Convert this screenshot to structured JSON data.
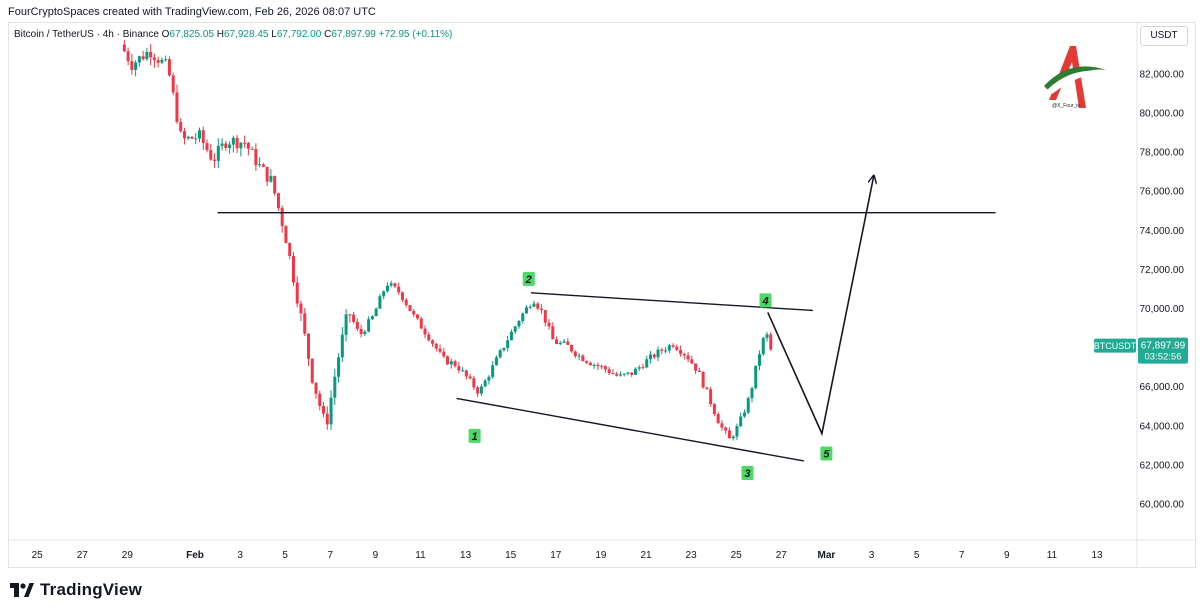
{
  "header": {
    "credit": "FourCryptoSpaces created with TradingView.com, Feb 26, 2026 08:07 UTC"
  },
  "legend": {
    "symbol": "Bitcoin / TetherUS · 4h · Binance",
    "o_label": "O",
    "o_value": "67,825.05",
    "h_label": "H",
    "h_value": "67,928.45",
    "l_label": "L",
    "l_value": "67,792.00",
    "c_label": "C",
    "c_value": "67,897.99",
    "change": "+72.95 (+0.11%)",
    "up_color": "#089981",
    "down_color": "#f23645"
  },
  "currency": "USDT",
  "price_tag": {
    "symbol": "BTCUSDT",
    "price": "67,897.99",
    "countdown": "03:52:56",
    "color": "#22ab94"
  },
  "watermark": {
    "handle": "@X_Four_iv"
  },
  "footer": {
    "brand": "TradingView"
  },
  "chart_data": {
    "type": "candlestick",
    "timeframe": "4h",
    "ylim": [
      59500,
      84000
    ],
    "y_ticks": [
      {
        "value": 82000,
        "label": "82,000.00"
      },
      {
        "value": 80000,
        "label": "80,000.00"
      },
      {
        "value": 78000,
        "label": "78,000.00"
      },
      {
        "value": 76000,
        "label": "76,000.00"
      },
      {
        "value": 74000,
        "label": "74,000.00"
      },
      {
        "value": 72000,
        "label": "72,000.00"
      },
      {
        "value": 70000,
        "label": "70,000.00"
      },
      {
        "value": 66000,
        "label": "66,000.00"
      },
      {
        "value": 64000,
        "label": "64,000.00"
      },
      {
        "value": 62000,
        "label": "62,000.00"
      },
      {
        "value": 60000,
        "label": "60,000.00"
      }
    ],
    "x_ticks": [
      {
        "day": -7,
        "label": "25"
      },
      {
        "day": -5,
        "label": "27"
      },
      {
        "day": -3,
        "label": "29"
      },
      {
        "day": 0,
        "label": "Feb"
      },
      {
        "day": 2,
        "label": "3"
      },
      {
        "day": 4,
        "label": "5"
      },
      {
        "day": 6,
        "label": "7"
      },
      {
        "day": 8,
        "label": "9"
      },
      {
        "day": 10,
        "label": "11"
      },
      {
        "day": 12,
        "label": "13"
      },
      {
        "day": 14,
        "label": "15"
      },
      {
        "day": 16,
        "label": "17"
      },
      {
        "day": 18,
        "label": "19"
      },
      {
        "day": 20,
        "label": "21"
      },
      {
        "day": 22,
        "label": "23"
      },
      {
        "day": 24,
        "label": "25"
      },
      {
        "day": 26,
        "label": "27"
      },
      {
        "day": 28,
        "label": "Mar"
      },
      {
        "day": 30,
        "label": "3"
      },
      {
        "day": 32,
        "label": "5"
      },
      {
        "day": 34,
        "label": "7"
      },
      {
        "day": 36,
        "label": "9"
      },
      {
        "day": 38,
        "label": "11"
      },
      {
        "day": 40,
        "label": "13"
      }
    ],
    "price_path": [
      [
        -3.3,
        83500
      ],
      [
        -2.8,
        82500
      ],
      [
        -2.0,
        83200
      ],
      [
        -1.2,
        82300
      ],
      [
        -0.6,
        78600
      ],
      [
        0.2,
        78800
      ],
      [
        0.8,
        77600
      ],
      [
        1.4,
        78600
      ],
      [
        2.2,
        78500
      ],
      [
        2.9,
        77200
      ],
      [
        3.4,
        76500
      ],
      [
        4.0,
        73800
      ],
      [
        4.6,
        70200
      ],
      [
        5.2,
        66500
      ],
      [
        5.8,
        63900
      ],
      [
        6.3,
        67200
      ],
      [
        6.8,
        69900
      ],
      [
        7.3,
        68600
      ],
      [
        7.9,
        69600
      ],
      [
        8.5,
        71300
      ],
      [
        9.1,
        70800
      ],
      [
        9.7,
        69600
      ],
      [
        10.4,
        68500
      ],
      [
        11.0,
        67400
      ],
      [
        11.6,
        67100
      ],
      [
        12.1,
        66400
      ],
      [
        12.6,
        65700
      ],
      [
        13.2,
        67000
      ],
      [
        13.8,
        68300
      ],
      [
        14.4,
        69500
      ],
      [
        15.0,
        70500
      ],
      [
        15.4,
        69800
      ],
      [
        15.9,
        68300
      ],
      [
        16.5,
        68100
      ],
      [
        17.0,
        67600
      ],
      [
        17.6,
        67200
      ],
      [
        18.2,
        66900
      ],
      [
        18.8,
        66500
      ],
      [
        19.4,
        66700
      ],
      [
        20.0,
        67300
      ],
      [
        20.6,
        67800
      ],
      [
        21.2,
        68200
      ],
      [
        21.8,
        67600
      ],
      [
        22.3,
        66800
      ],
      [
        22.8,
        65400
      ],
      [
        23.3,
        64000
      ],
      [
        23.7,
        63300
      ],
      [
        24.1,
        64000
      ],
      [
        24.6,
        65500
      ],
      [
        25.0,
        67600
      ],
      [
        25.3,
        68800
      ],
      [
        25.6,
        67900
      ]
    ],
    "horizontal_line": {
      "price": 74900,
      "from_day": 1.0,
      "to_day": 35.5
    },
    "trendlines": [
      {
        "from": [
          14.9,
          70800
        ],
        "to": [
          27.4,
          69900
        ]
      },
      {
        "from": [
          11.6,
          65400
        ],
        "to": [
          27.0,
          62200
        ]
      }
    ],
    "projection": [
      [
        25.4,
        69800
      ],
      [
        27.8,
        63600
      ],
      [
        30.1,
        76800
      ]
    ],
    "wave_labels": [
      {
        "label": "1",
        "day": 12.4,
        "price": 64200,
        "side": "below"
      },
      {
        "label": "2",
        "day": 14.8,
        "price": 70900,
        "side": "above"
      },
      {
        "label": "3",
        "day": 24.5,
        "price": 62300,
        "side": "below"
      },
      {
        "label": "4",
        "day": 25.3,
        "price": 69800,
        "side": "above"
      },
      {
        "label": "5",
        "day": 28.0,
        "price": 63300,
        "side": "below"
      }
    ],
    "wave_label_color": "#4cd964"
  }
}
